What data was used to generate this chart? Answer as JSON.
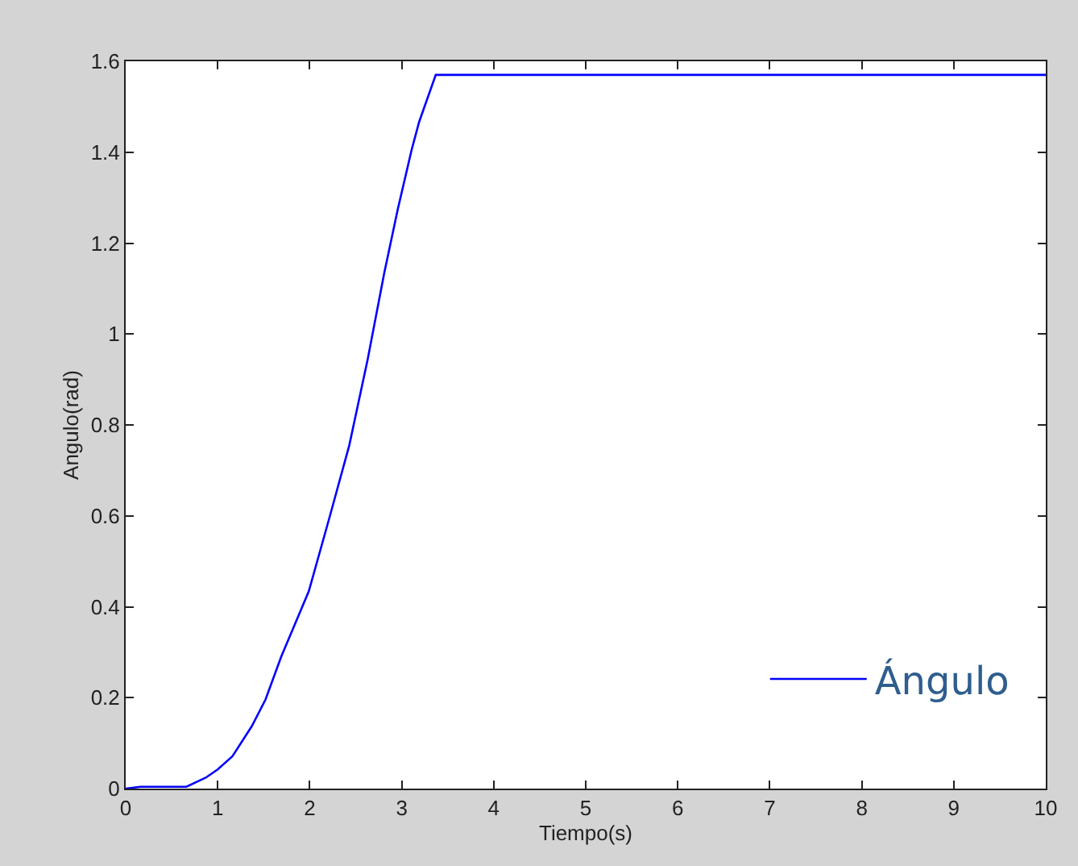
{
  "chart_data": {
    "type": "line",
    "xlabel": "Tiempo(s)",
    "ylabel": "Angulo(rad)",
    "xlim": [
      0,
      10
    ],
    "xticks": [
      0,
      1,
      2,
      3,
      4,
      5,
      6,
      7,
      8,
      9,
      10
    ],
    "ylim": [
      0,
      1.6
    ],
    "yticks": [
      0,
      0.2,
      0.4,
      0.6,
      0.8,
      1,
      1.2,
      1.4,
      1.6
    ],
    "legend": "bottom right",
    "line_style": "solid",
    "marker": "none",
    "series": [
      {
        "name": "Ángulo",
        "color": "#0000ff",
        "x": [
          0,
          0.16,
          0.66,
          0.87,
          1.0,
          1.16,
          1.37,
          1.52,
          1.69,
          1.99,
          2.22,
          2.43,
          2.63,
          2.81,
          2.96,
          3.11,
          3.19,
          3.37,
          10
        ],
        "values": [
          0,
          0.004,
          0.004,
          0.024,
          0.042,
          0.071,
          0.137,
          0.196,
          0.29,
          0.434,
          0.6,
          0.755,
          0.944,
          1.134,
          1.277,
          1.407,
          1.467,
          1.57,
          1.57
        ]
      }
    ]
  }
}
